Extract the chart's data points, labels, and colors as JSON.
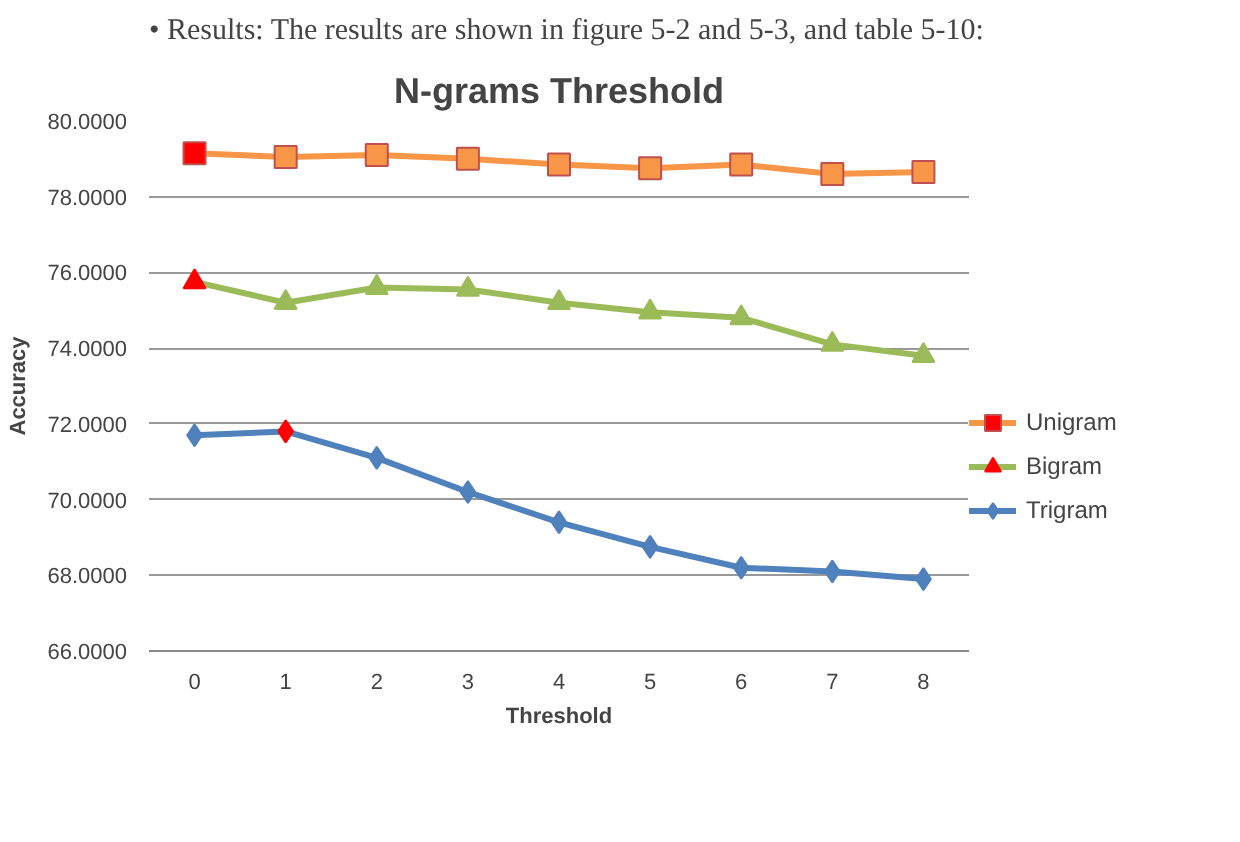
{
  "chart_data": {
    "type": "line",
    "title": "N-grams Threshold",
    "xlabel": "Threshold",
    "ylabel": "Accuracy",
    "annotations": [
      "• Results: The results are shown in figure 5-2 and 5-3, and table 5-10:"
    ],
    "x": [
      0,
      1,
      2,
      3,
      4,
      5,
      6,
      7,
      8
    ],
    "series": [
      {
        "name": "Unigram",
        "color": "#f79646",
        "marker": "square",
        "values": [
          79.15,
          79.05,
          79.1,
          79.0,
          78.85,
          78.75,
          78.85,
          78.6,
          78.65
        ],
        "colors": [
          "#ff0000",
          "#f79646",
          "#f79646",
          "#f79646",
          "#f79646",
          "#f79646",
          "#f79646",
          "#f79646",
          "#f79646"
        ]
      },
      {
        "name": "Bigram",
        "color": "#9bbb59",
        "marker": "triangle",
        "values": [
          75.75,
          75.2,
          75.6,
          75.55,
          75.2,
          74.95,
          74.8,
          74.1,
          73.8
        ],
        "colors": [
          "#ff0000",
          "#9bbb59",
          "#9bbb59",
          "#9bbb59",
          "#9bbb59",
          "#9bbb59",
          "#9bbb59",
          "#9bbb59",
          "#9bbb59"
        ]
      },
      {
        "name": "Trigram",
        "color": "#4f81bd",
        "marker": "diamond",
        "values": [
          71.7,
          71.8,
          71.1,
          70.2,
          69.4,
          68.75,
          68.2,
          68.1,
          67.9
        ],
        "colors": [
          "#4f81bd",
          "#ff0000",
          "#4f81bd",
          "#4f81bd",
          "#4f81bd",
          "#4f81bd",
          "#4f81bd",
          "#4f81bd",
          "#4f81bd"
        ]
      }
    ],
    "xlim": [
      -0.5,
      8.5
    ],
    "xticks": [
      0,
      1,
      2,
      3,
      4,
      5,
      6,
      7,
      8
    ],
    "ylim": [
      66,
      80
    ],
    "yticks": [
      {
        "value": 66,
        "label": "66.0000"
      },
      {
        "value": 68,
        "label": "68.0000"
      },
      {
        "value": 70,
        "label": "70.0000"
      },
      {
        "value": 72,
        "label": "72.0000"
      },
      {
        "value": 74,
        "label": "74.0000"
      },
      {
        "value": 76,
        "label": "76.0000"
      },
      {
        "value": 78,
        "label": "78.0000"
      },
      {
        "value": 80,
        "label": "80.0000"
      }
    ],
    "grid": "y",
    "legend": "right",
    "line_style": "solid"
  }
}
